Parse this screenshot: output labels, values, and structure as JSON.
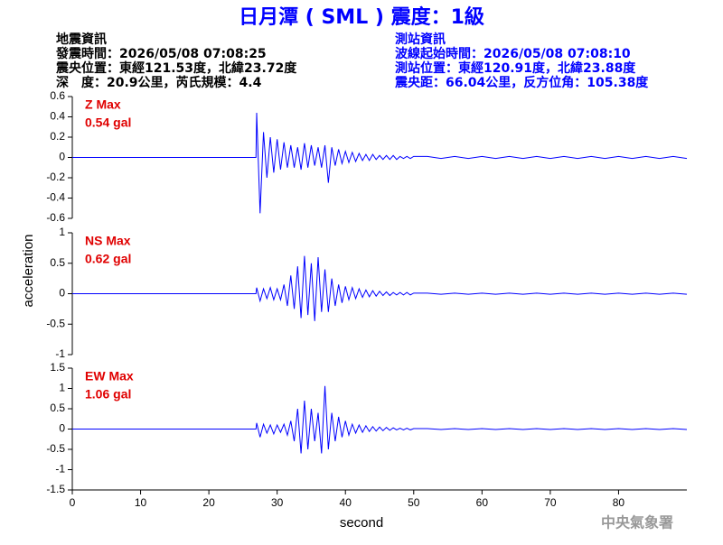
{
  "header": {
    "title": "日月潭 ( SML ) 震度：1級",
    "left": [
      "地震資訊",
      "發震時間：2026/05/08 07:08:25",
      "震央位置：東經121.53度，北緯23.72度",
      "深　度：20.9公里，芮氏規模：4.4"
    ],
    "right": [
      "測站資訊",
      "波線起始時間：2026/05/08 07:08:10",
      "測站位置：東經120.91度，北緯23.88度",
      "震央距：66.04公里，反方位角：105.38度"
    ]
  },
  "chart_data": [
    {
      "type": "line",
      "annotations": [
        "Z Max",
        "0.54 gal"
      ],
      "color": "#0000ff",
      "x": [
        0,
        26.9,
        27,
        27.5,
        28,
        28.5,
        29,
        29.5,
        30,
        30.5,
        31,
        31.5,
        32,
        32.5,
        33,
        33.5,
        34,
        34.5,
        35,
        35.5,
        36,
        36.5,
        37,
        37.5,
        38,
        38.5,
        39,
        39.5,
        40,
        40.5,
        41,
        41.5,
        42,
        42.5,
        43,
        43.5,
        44,
        44.5,
        45,
        45.5,
        46,
        46.5,
        47,
        47.5,
        48,
        48.5,
        49,
        49.5,
        50,
        52,
        54,
        56,
        58,
        60,
        62,
        64,
        66,
        68,
        70,
        72,
        74,
        76,
        78,
        80,
        82,
        84,
        86,
        88,
        90
      ],
      "values": [
        0,
        0,
        0.44,
        -0.55,
        0.25,
        -0.2,
        0.2,
        -0.15,
        0.18,
        -0.12,
        0.15,
        -0.1,
        0.12,
        -0.1,
        0.1,
        -0.12,
        0.14,
        -0.1,
        0.12,
        -0.08,
        0.1,
        -0.1,
        0.12,
        -0.25,
        0.1,
        -0.08,
        0.08,
        -0.06,
        0.06,
        -0.05,
        0.05,
        -0.04,
        0.04,
        -0.03,
        0.03,
        -0.03,
        0.03,
        -0.02,
        0.02,
        -0.02,
        0.02,
        -0.02,
        0.02,
        -0.02,
        0.01,
        -0.01,
        0.01,
        -0.01,
        0.01,
        0.01,
        -0.01,
        0.01,
        -0.01,
        0.01,
        -0.01,
        0.01,
        -0.01,
        0.01,
        -0.01,
        0.01,
        -0.01,
        0.01,
        -0.01,
        0.01,
        -0.01,
        0.01,
        -0.01,
        0.01,
        -0.01
      ],
      "xlim": [
        0,
        90
      ],
      "ylim": [
        -0.6,
        0.6
      ],
      "yticks": [
        -0.6,
        -0.4,
        -0.2,
        0,
        0.2,
        0.4,
        0.6
      ]
    },
    {
      "type": "line",
      "annotations": [
        "NS Max",
        "0.62 gal"
      ],
      "color": "#0000ff",
      "ylabel": "acceleration",
      "x": [
        0,
        26.9,
        27,
        27.5,
        28,
        28.5,
        29,
        29.5,
        30,
        30.5,
        31,
        31.5,
        32,
        32.5,
        33,
        33.5,
        34,
        34.5,
        35,
        35.5,
        36,
        36.5,
        37,
        37.5,
        38,
        38.5,
        39,
        39.5,
        40,
        40.5,
        41,
        41.5,
        42,
        42.5,
        43,
        43.5,
        44,
        44.5,
        45,
        45.5,
        46,
        46.5,
        47,
        47.5,
        48,
        48.5,
        49,
        49.5,
        50,
        52,
        54,
        56,
        58,
        60,
        62,
        64,
        66,
        68,
        70,
        72,
        74,
        76,
        78,
        80,
        82,
        84,
        86,
        88,
        90
      ],
      "values": [
        0,
        0,
        0.1,
        -0.12,
        0.08,
        -0.08,
        0.1,
        -0.1,
        0.08,
        -0.1,
        0.15,
        -0.2,
        0.3,
        -0.25,
        0.45,
        -0.4,
        0.62,
        -0.35,
        0.5,
        -0.45,
        0.6,
        -0.3,
        0.4,
        -0.3,
        0.25,
        -0.2,
        0.15,
        -0.15,
        0.12,
        -0.1,
        0.1,
        -0.08,
        0.08,
        -0.06,
        0.06,
        -0.05,
        0.05,
        -0.04,
        0.04,
        -0.03,
        0.03,
        -0.03,
        0.02,
        -0.02,
        0.02,
        -0.02,
        0.02,
        -0.02,
        0.01,
        0.01,
        -0.01,
        0.01,
        -0.01,
        0.01,
        -0.01,
        0.01,
        -0.01,
        0.01,
        -0.01,
        0.01,
        -0.01,
        0.01,
        -0.01,
        0.01,
        -0.01,
        0.01,
        -0.01,
        0.01,
        -0.01
      ],
      "xlim": [
        0,
        90
      ],
      "ylim": [
        -1,
        1
      ],
      "yticks": [
        -1,
        -0.5,
        0,
        0.5,
        1
      ]
    },
    {
      "type": "line",
      "annotations": [
        "EW Max",
        "1.06 gal"
      ],
      "color": "#0000ff",
      "xlabel": "second",
      "x": [
        0,
        26.9,
        27,
        27.5,
        28,
        28.5,
        29,
        29.5,
        30,
        30.5,
        31,
        31.5,
        32,
        32.5,
        33,
        33.5,
        34,
        34.5,
        35,
        35.5,
        36,
        36.5,
        37,
        37.5,
        38,
        38.5,
        39,
        39.5,
        40,
        40.5,
        41,
        41.5,
        42,
        42.5,
        43,
        43.5,
        44,
        44.5,
        45,
        45.5,
        46,
        46.5,
        47,
        47.5,
        48,
        48.5,
        49,
        49.5,
        50,
        52,
        54,
        56,
        58,
        60,
        62,
        64,
        66,
        68,
        70,
        72,
        74,
        76,
        78,
        80,
        82,
        84,
        86,
        88,
        90
      ],
      "values": [
        0,
        0,
        0.15,
        -0.2,
        0.12,
        -0.1,
        0.1,
        -0.12,
        0.1,
        -0.08,
        0.12,
        -0.15,
        0.2,
        -0.3,
        0.5,
        -0.6,
        0.7,
        -0.5,
        0.5,
        -0.3,
        0.4,
        -0.6,
        1.06,
        -0.5,
        0.4,
        -0.3,
        0.3,
        -0.2,
        0.2,
        -0.15,
        0.12,
        -0.1,
        0.1,
        -0.08,
        0.08,
        -0.06,
        0.06,
        -0.05,
        0.05,
        -0.04,
        0.04,
        -0.03,
        0.03,
        -0.02,
        0.02,
        -0.02,
        0.02,
        -0.02,
        0.01,
        0.01,
        -0.01,
        0.01,
        -0.01,
        0.01,
        -0.01,
        0.01,
        -0.01,
        0.01,
        -0.01,
        0.01,
        -0.01,
        0.01,
        -0.01,
        0.01,
        -0.01,
        0.01,
        -0.01,
        0.01,
        -0.01
      ],
      "xlim": [
        0,
        90
      ],
      "xticks": [
        0,
        10,
        20,
        30,
        40,
        50,
        60,
        70,
        80
      ],
      "ylim": [
        -1.5,
        1.5
      ],
      "yticks": [
        -1.5,
        -1,
        -0.5,
        0,
        0.5,
        1,
        1.5
      ]
    }
  ],
  "footer": "中央氣象署"
}
